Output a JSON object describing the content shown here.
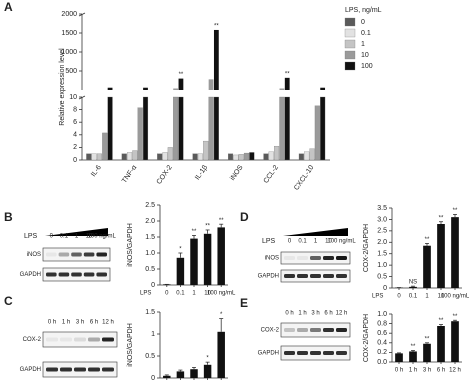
{
  "chart_data": [
    {
      "type": "grouped_bar_broken",
      "panel": "A",
      "ylabel": "Relative expression level",
      "legend_title": "LPS, ng/mL",
      "categories": [
        "IL-6",
        "TNF-α",
        "COX-2",
        "IL-1β",
        "iNOS",
        "CCL-2",
        "CXCL-10"
      ],
      "series": [
        {
          "name": "0",
          "color": "#5a5a5a",
          "values": [
            1,
            1,
            1,
            1,
            1,
            1,
            1
          ]
        },
        {
          "name": "0.1",
          "color": "#e2e2e2",
          "values": [
            1,
            1.2,
            1.2,
            1,
            0.8,
            1.3,
            1.3
          ]
        },
        {
          "name": "1",
          "color": "#c4c4c4",
          "values": [
            1,
            1.5,
            2,
            3,
            0.9,
            2.2,
            1.8
          ]
        },
        {
          "name": "10",
          "color": "#9a9a9a",
          "values": [
            4.3,
            8.3,
            12,
            280,
            1.1,
            12,
            8.6
          ]
        },
        {
          "name": "100",
          "color": "#111111",
          "values": [
            60,
            60,
            300,
            1580,
            1.2,
            320,
            60
          ]
        }
      ],
      "y_segments": [
        {
          "ylim": [
            0,
            10
          ],
          "yticks": [
            0,
            2,
            4,
            6,
            8,
            10
          ]
        },
        {
          "ylim": [
            0,
            2000
          ],
          "yticks": [
            500,
            1000,
            1500,
            2000
          ]
        }
      ],
      "annotations": [
        {
          "text": "**",
          "category": 2,
          "series": 4
        },
        {
          "text": "**",
          "category": 3,
          "series": 4
        },
        {
          "text": "**",
          "category": 5,
          "series": 4
        }
      ]
    },
    {
      "type": "bar",
      "panel": "B",
      "blot": {
        "treatment": "LPS",
        "bands": [
          "iNOS",
          "GAPDH"
        ]
      },
      "ylabel": "iNOS/GAPDH",
      "xlabel": "LPS",
      "categories": [
        "0",
        "0.1",
        "1",
        "10",
        "100 ng/mL"
      ],
      "values": [
        0.02,
        0.85,
        1.45,
        1.6,
        1.8
      ],
      "errors": [
        0,
        0.15,
        0.1,
        0.12,
        0.1
      ],
      "annotations": [
        null,
        "*",
        "**",
        "**",
        "**"
      ],
      "color": "#111111",
      "ylim": [
        0,
        2.5
      ],
      "yticks": [
        0,
        0.5,
        {
          "value": 1,
          "label": "1.0"
        },
        1.5,
        {
          "value": 2,
          "label": "2.0"
        },
        2.5
      ]
    },
    {
      "type": "bar",
      "panel": "C",
      "blot": {
        "bands": [
          "COX-2",
          "GAPDH"
        ]
      },
      "ylabel": "iNOS/GAPDH",
      "categories": [
        "0 h",
        "1 h",
        "3 h",
        "6 h",
        "12 h"
      ],
      "values": [
        0.05,
        0.15,
        0.2,
        0.3,
        1.05
      ],
      "errors": [
        0.02,
        0.03,
        0.04,
        0.06,
        0.3
      ],
      "annotations": [
        null,
        null,
        null,
        "*",
        "*"
      ],
      "color": "#111111",
      "ylim": [
        0,
        1.5
      ],
      "yticks": [
        0,
        0.5,
        1,
        1.5
      ]
    },
    {
      "type": "bar",
      "panel": "D",
      "blot": {
        "treatment": "LPS",
        "bands": [
          "iNOS",
          "GAPDH"
        ]
      },
      "ylabel": "COX-2/GAPDH",
      "xlabel": "LPS",
      "categories": [
        "0",
        "0.1",
        "1",
        "10",
        "100 ng/mL"
      ],
      "values": [
        0.02,
        0.05,
        1.85,
        2.8,
        3.1
      ],
      "errors": [
        0,
        0.03,
        0.1,
        0.1,
        0.12
      ],
      "annotations": [
        null,
        "NS",
        "**",
        "**",
        "**"
      ],
      "color": "#111111",
      "ylim": [
        0,
        3.5
      ],
      "yticks": [
        0,
        0.5,
        {
          "value": 1,
          "label": "1.0"
        },
        1.5,
        {
          "value": 2,
          "label": "2.0"
        },
        2.5,
        {
          "value": 3,
          "label": "3.0"
        },
        3.5
      ]
    },
    {
      "type": "bar",
      "panel": "E",
      "blot": {
        "bands": [
          "COX-2",
          "GAPDH"
        ]
      },
      "ylabel": "COX-2/GAPDH",
      "categories": [
        "0 h",
        "1 h",
        "3 h",
        "6 h",
        "12 h"
      ],
      "values": [
        0.18,
        0.22,
        0.38,
        0.75,
        0.85
      ],
      "errors": [
        0.01,
        0.02,
        0.02,
        0.03,
        0.02
      ],
      "annotations": [
        null,
        "**",
        "**",
        "**",
        "**"
      ],
      "color": "#111111",
      "ylim": [
        0,
        1
      ],
      "yticks": [
        {
          "value": 0,
          "label": "0.0"
        },
        0.2,
        0.4,
        0.6,
        0.8,
        {
          "value": 1,
          "label": "1.0"
        }
      ]
    }
  ]
}
